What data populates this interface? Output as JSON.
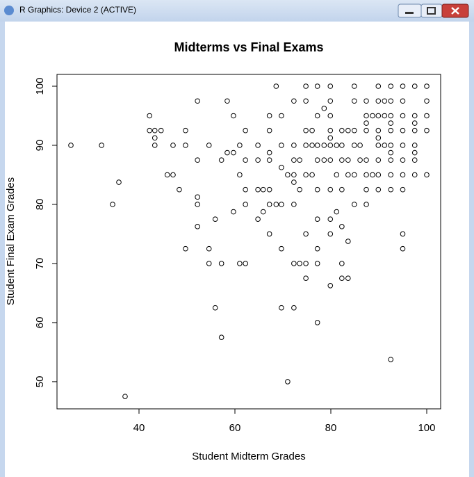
{
  "window": {
    "title": "R Graphics: Device 2 (ACTIVE)"
  },
  "chart_data": {
    "type": "scatter",
    "title": "Midterms vs Final Exams",
    "xlabel": "Student Midterm Grades",
    "ylabel": "Student Final Exam Grades",
    "xlim": [
      22.9,
      102.9
    ],
    "ylim": [
      45.4,
      102
    ],
    "xticks": [
      40,
      60,
      80,
      100
    ],
    "yticks": [
      50,
      60,
      70,
      80,
      90,
      100
    ],
    "color": "#000000",
    "grid": false,
    "x": [
      25.8,
      32.2,
      34.5,
      35.8,
      37.1,
      42.2,
      42.2,
      43.3,
      43.3,
      43.3,
      44.6,
      45.9,
      47.1,
      47.1,
      48.4,
      49.7,
      49.7,
      49.7,
      52.2,
      52.2,
      52.2,
      52.2,
      52.2,
      54.6,
      54.6,
      54.6,
      55.9,
      55.9,
      57.2,
      57.2,
      57.2,
      58.4,
      58.4,
      59.7,
      59.7,
      59.7,
      61,
      61,
      61,
      62.2,
      62.2,
      62.2,
      62.2,
      62.2,
      64.8,
      64.8,
      64.8,
      64.8,
      65.9,
      65.9,
      67.2,
      67.2,
      67.2,
      67.2,
      67.2,
      67.2,
      67.2,
      68.6,
      68.6,
      69.7,
      69.7,
      69.7,
      69.7,
      69.7,
      69.7,
      71,
      71,
      72.3,
      72.3,
      72.3,
      72.3,
      72.3,
      72.3,
      72.3,
      72.3,
      73.5,
      73.5,
      73.5,
      74.8,
      74.8,
      74.8,
      74.8,
      74.8,
      74.8,
      74.8,
      74.8,
      76.1,
      76.1,
      76.1,
      77.2,
      77.2,
      77.2,
      77.2,
      77.2,
      77.2,
      77.2,
      77.2,
      77.2,
      78.6,
      78.6,
      78.6,
      79.9,
      79.9,
      79.9,
      79.9,
      79.9,
      79.9,
      79.9,
      79.9,
      79.9,
      79.9,
      79.9,
      81.2,
      81.2,
      81.2,
      82.3,
      82.3,
      82.3,
      82.3,
      82.3,
      82.3,
      82.3,
      83.6,
      83.6,
      83.6,
      83.6,
      83.6,
      84.9,
      84.9,
      84.9,
      84.9,
      84.9,
      84.9,
      86.1,
      86.1,
      87.4,
      87.4,
      87.4,
      87.4,
      87.4,
      87.4,
      87.4,
      87.4,
      88.7,
      88.7,
      89.9,
      89.9,
      89.9,
      89.9,
      89.9,
      89.9,
      89.9,
      89.9,
      89.9,
      91.2,
      91.2,
      91.2,
      92.5,
      92.5,
      92.5,
      92.5,
      92.5,
      92.5,
      92.5,
      92.5,
      92.5,
      92.5,
      92.5,
      95,
      95,
      95,
      95,
      95,
      95,
      95,
      95,
      95,
      95,
      97.5,
      97.5,
      97.5,
      97.5,
      97.5,
      97.5,
      97.5,
      97.5,
      100,
      100,
      100,
      100,
      100
    ],
    "values": [
      90,
      90,
      80,
      83.75,
      47.5,
      95,
      92.5,
      92.5,
      91.25,
      90,
      92.5,
      85,
      85,
      90,
      82.5,
      92.5,
      90,
      72.5,
      97.5,
      87.5,
      81.25,
      80,
      76.25,
      90,
      72.5,
      70,
      77.5,
      62.5,
      57.5,
      87.5,
      70,
      97.5,
      88.75,
      88.75,
      95,
      78.75,
      85,
      90,
      70,
      70,
      92.5,
      87.5,
      82.5,
      80,
      90,
      87.5,
      82.5,
      77.5,
      78.75,
      82.5,
      82.5,
      87.5,
      88.75,
      95,
      92.5,
      75,
      80,
      100,
      80,
      95,
      90,
      86.25,
      80,
      72.5,
      62.5,
      85,
      50,
      97.5,
      90,
      87.5,
      85,
      83.75,
      80,
      70,
      62.5,
      87.5,
      82.5,
      70,
      100,
      97.5,
      92.5,
      90,
      85,
      75,
      70,
      67.5,
      92.5,
      90,
      85,
      100,
      95,
      90,
      87.5,
      82.5,
      77.5,
      72.5,
      70,
      60,
      90,
      87.5,
      96.25,
      100,
      97.5,
      95,
      92.5,
      91.25,
      90,
      87.5,
      82.5,
      77.5,
      75,
      66.25,
      90,
      85,
      78.75,
      92.5,
      90,
      87.5,
      82.5,
      76.25,
      70,
      67.5,
      92.5,
      87.5,
      85,
      67.5,
      73.75,
      100,
      97.5,
      92.5,
      90,
      85,
      80,
      90,
      87.5,
      97.5,
      95,
      93.75,
      92.5,
      87.5,
      85,
      82.5,
      80,
      95,
      85,
      100,
      97.5,
      95,
      92.5,
      91.25,
      90,
      87.5,
      85,
      82.5,
      97.5,
      95,
      90,
      100,
      97.5,
      95,
      93.75,
      92.5,
      90,
      88.75,
      87.5,
      85,
      82.5,
      53.75,
      100,
      97.5,
      95,
      92.5,
      90,
      87.5,
      85,
      82.5,
      75,
      72.5,
      100,
      95,
      93.75,
      92.5,
      90,
      88.75,
      87.5,
      85,
      100,
      97.5,
      95,
      92.5,
      85
    ]
  }
}
